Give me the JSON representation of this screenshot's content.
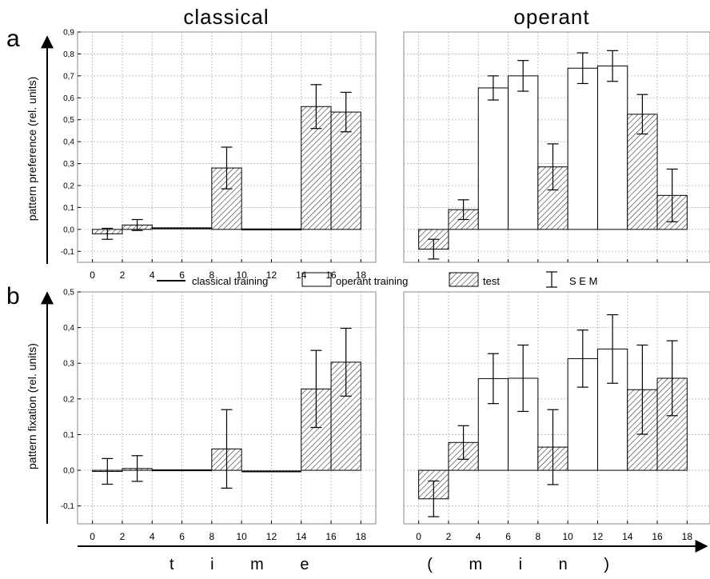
{
  "column_titles": [
    "classical",
    "operant"
  ],
  "panel_letters": [
    "a",
    "b"
  ],
  "legend": {
    "classical_training": "classical training",
    "operant_training": "operant training",
    "test": "test",
    "sem": "S E M"
  },
  "x_axis_title": "t i m e     ( m i n )",
  "colors": {
    "bar_stroke": "#000000",
    "grid": "#9a9a9a",
    "frame": "#888888",
    "operant_fill": "#ffffff"
  },
  "chart_data": [
    {
      "type": "bar",
      "panel": "a",
      "condition": "classical",
      "ylabel": "pattern preference (rel. units)",
      "xlabel": "",
      "ylim": [
        -0.15,
        0.9
      ],
      "yticks": [
        "-0,1",
        "0,0",
        "0,1",
        "0,2",
        "0,3",
        "0,4",
        "0,5",
        "0,6",
        "0,7",
        "0,8",
        "0,9"
      ],
      "ytick_values": [
        -0.1,
        0,
        0.1,
        0.2,
        0.3,
        0.4,
        0.5,
        0.6,
        0.7,
        0.8,
        0.9
      ],
      "xlim": [
        -1,
        19
      ],
      "xticks": [
        "0",
        "2",
        "4",
        "6",
        "8",
        "10",
        "12",
        "14",
        "16",
        "18"
      ],
      "xtick_values": [
        0,
        2,
        4,
        6,
        8,
        10,
        12,
        14,
        16,
        18
      ],
      "grid": true,
      "bars": [
        {
          "start": 0,
          "end": 2,
          "kind": "test",
          "value": -0.02,
          "sem": 0.025
        },
        {
          "start": 2,
          "end": 4,
          "kind": "test",
          "value": 0.02,
          "sem": 0.025
        },
        {
          "start": 4,
          "end": 8,
          "kind": "classical",
          "value": 0.005,
          "sem": 0
        },
        {
          "start": 8,
          "end": 10,
          "kind": "test",
          "value": 0.28,
          "sem": 0.095
        },
        {
          "start": 10,
          "end": 14,
          "kind": "classical",
          "value": 0.0,
          "sem": 0
        },
        {
          "start": 14,
          "end": 16,
          "kind": "test",
          "value": 0.56,
          "sem": 0.1
        },
        {
          "start": 16,
          "end": 18,
          "kind": "test",
          "value": 0.535,
          "sem": 0.09
        }
      ]
    },
    {
      "type": "bar",
      "panel": "a",
      "condition": "operant",
      "ylabel": "",
      "xlabel": "",
      "ylim": [
        -0.15,
        0.9
      ],
      "yticks": [],
      "ytick_values": [
        -0.1,
        0,
        0.1,
        0.2,
        0.3,
        0.4,
        0.5,
        0.6,
        0.7,
        0.8,
        0.9
      ],
      "xlim": [
        -1,
        19
      ],
      "xticks": [],
      "xtick_values": [
        0,
        2,
        4,
        6,
        8,
        10,
        12,
        14,
        16,
        18
      ],
      "grid": true,
      "bars": [
        {
          "start": 0,
          "end": 2,
          "kind": "test",
          "value": -0.09,
          "sem": 0.045
        },
        {
          "start": 2,
          "end": 4,
          "kind": "test",
          "value": 0.09,
          "sem": 0.045
        },
        {
          "start": 4,
          "end": 6,
          "kind": "operant",
          "value": 0.645,
          "sem": 0.055
        },
        {
          "start": 6,
          "end": 8,
          "kind": "operant",
          "value": 0.7,
          "sem": 0.07
        },
        {
          "start": 8,
          "end": 10,
          "kind": "test",
          "value": 0.285,
          "sem": 0.105
        },
        {
          "start": 10,
          "end": 12,
          "kind": "operant",
          "value": 0.735,
          "sem": 0.07
        },
        {
          "start": 12,
          "end": 14,
          "kind": "operant",
          "value": 0.745,
          "sem": 0.07
        },
        {
          "start": 14,
          "end": 16,
          "kind": "test",
          "value": 0.525,
          "sem": 0.09
        },
        {
          "start": 16,
          "end": 18,
          "kind": "test",
          "value": 0.155,
          "sem": 0.12
        }
      ]
    },
    {
      "type": "bar",
      "panel": "b",
      "condition": "classical",
      "ylabel": "pattern fixation (rel. units)",
      "xlabel": "",
      "ylim": [
        -0.15,
        0.5
      ],
      "yticks": [
        "-0,1",
        "0,0",
        "0,1",
        "0,2",
        "0,3",
        "0,4",
        "0,5"
      ],
      "ytick_values": [
        -0.1,
        0,
        0.1,
        0.2,
        0.3,
        0.4,
        0.5
      ],
      "xlim": [
        -1,
        19
      ],
      "xticks": [
        "0",
        "2",
        "4",
        "6",
        "8",
        "10",
        "12",
        "14",
        "16",
        "18"
      ],
      "xtick_values": [
        0,
        2,
        4,
        6,
        8,
        10,
        12,
        14,
        16,
        18
      ],
      "grid": true,
      "bars": [
        {
          "start": 0,
          "end": 2,
          "kind": "test",
          "value": -0.003,
          "sem": 0.036
        },
        {
          "start": 2,
          "end": 4,
          "kind": "test",
          "value": 0.005,
          "sem": 0.036
        },
        {
          "start": 4,
          "end": 8,
          "kind": "classical",
          "value": 0.0,
          "sem": 0
        },
        {
          "start": 8,
          "end": 10,
          "kind": "test",
          "value": 0.06,
          "sem": 0.11
        },
        {
          "start": 10,
          "end": 14,
          "kind": "classical",
          "value": -0.003,
          "sem": 0
        },
        {
          "start": 14,
          "end": 16,
          "kind": "test",
          "value": 0.228,
          "sem": 0.108
        },
        {
          "start": 16,
          "end": 18,
          "kind": "test",
          "value": 0.303,
          "sem": 0.095
        }
      ]
    },
    {
      "type": "bar",
      "panel": "b",
      "condition": "operant",
      "ylabel": "",
      "xlabel": "",
      "ylim": [
        -0.15,
        0.5
      ],
      "yticks": [],
      "ytick_values": [
        -0.1,
        0,
        0.1,
        0.2,
        0.3,
        0.4,
        0.5
      ],
      "xlim": [
        -1,
        19
      ],
      "xticks": [
        "0",
        "2",
        "4",
        "6",
        "8",
        "10",
        "12",
        "14",
        "16",
        "18"
      ],
      "xtick_values": [
        0,
        2,
        4,
        6,
        8,
        10,
        12,
        14,
        16,
        18
      ],
      "grid": true,
      "bars": [
        {
          "start": 0,
          "end": 2,
          "kind": "test",
          "value": -0.08,
          "sem": 0.05
        },
        {
          "start": 2,
          "end": 4,
          "kind": "test",
          "value": 0.078,
          "sem": 0.047
        },
        {
          "start": 4,
          "end": 6,
          "kind": "operant",
          "value": 0.257,
          "sem": 0.07
        },
        {
          "start": 6,
          "end": 8,
          "kind": "operant",
          "value": 0.258,
          "sem": 0.093
        },
        {
          "start": 8,
          "end": 10,
          "kind": "test",
          "value": 0.065,
          "sem": 0.105
        },
        {
          "start": 10,
          "end": 12,
          "kind": "operant",
          "value": 0.313,
          "sem": 0.08
        },
        {
          "start": 12,
          "end": 14,
          "kind": "operant",
          "value": 0.34,
          "sem": 0.096
        },
        {
          "start": 14,
          "end": 16,
          "kind": "test",
          "value": 0.226,
          "sem": 0.125
        },
        {
          "start": 16,
          "end": 18,
          "kind": "test",
          "value": 0.258,
          "sem": 0.105
        }
      ]
    }
  ]
}
